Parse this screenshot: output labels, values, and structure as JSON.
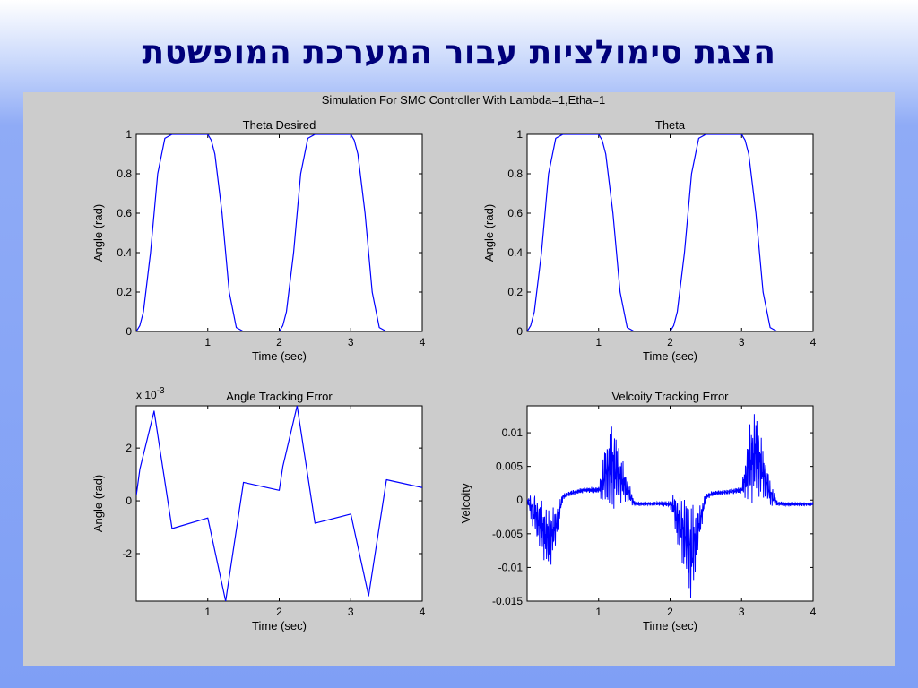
{
  "slide": {
    "title": "הצגת סימולציות עבור המערכת המופשטת"
  },
  "figure": {
    "suptitle": "Simulation For SMC Controller With Lambda=1,Etha=1"
  },
  "colors": {
    "line": "#0000ff",
    "background": "#cccccc",
    "axes_bg": "#ffffff",
    "title_text": "#00007a"
  },
  "chart_data": [
    {
      "type": "line",
      "title": "Theta Desired",
      "xlabel": "Time (sec)",
      "ylabel": "Angle (rad)",
      "xlim": [
        0,
        4
      ],
      "ylim": [
        0,
        1
      ],
      "xticks": [
        1,
        2,
        3,
        4
      ],
      "xtick_labels": [
        "1",
        "2",
        "3",
        "4"
      ],
      "yticks": [
        0,
        0.2,
        0.4,
        0.6,
        0.8,
        1
      ],
      "ytick_labels": [
        "0",
        "0.2",
        "0.4",
        "0.6",
        "0.8",
        "1"
      ],
      "series": [
        {
          "x": [
            0,
            0.05,
            0.1,
            0.2,
            0.3,
            0.4,
            0.5,
            1.0,
            1.05,
            1.1,
            1.2,
            1.3,
            1.4,
            1.5,
            2.0,
            2.05,
            2.1,
            2.2,
            2.3,
            2.4,
            2.5,
            3.0,
            3.05,
            3.1,
            3.2,
            3.3,
            3.4,
            3.5,
            4.0
          ],
          "y": [
            0,
            0.03,
            0.1,
            0.4,
            0.8,
            0.98,
            1,
            1,
            0.97,
            0.9,
            0.6,
            0.2,
            0.02,
            0,
            0,
            0.03,
            0.1,
            0.4,
            0.8,
            0.98,
            1,
            1,
            0.97,
            0.9,
            0.6,
            0.2,
            0.02,
            0,
            0
          ]
        }
      ]
    },
    {
      "type": "line",
      "title": "Theta",
      "xlabel": "Time (sec)",
      "ylabel": "Angle (rad)",
      "xlim": [
        0,
        4
      ],
      "ylim": [
        0,
        1
      ],
      "xticks": [
        1,
        2,
        3,
        4
      ],
      "xtick_labels": [
        "1",
        "2",
        "3",
        "4"
      ],
      "yticks": [
        0,
        0.2,
        0.4,
        0.6,
        0.8,
        1
      ],
      "ytick_labels": [
        "0",
        "0.2",
        "0.4",
        "0.6",
        "0.8",
        "1"
      ],
      "series": [
        {
          "x": [
            0,
            0.05,
            0.1,
            0.2,
            0.3,
            0.4,
            0.5,
            1.0,
            1.05,
            1.1,
            1.2,
            1.3,
            1.4,
            1.5,
            2.0,
            2.05,
            2.1,
            2.2,
            2.3,
            2.4,
            2.5,
            3.0,
            3.05,
            3.1,
            3.2,
            3.3,
            3.4,
            3.5,
            4.0
          ],
          "y": [
            0,
            0.03,
            0.1,
            0.4,
            0.8,
            0.98,
            1,
            1,
            0.97,
            0.9,
            0.6,
            0.2,
            0.02,
            0,
            0,
            0.03,
            0.1,
            0.4,
            0.8,
            0.98,
            1,
            1,
            0.97,
            0.9,
            0.6,
            0.2,
            0.02,
            0,
            0
          ]
        }
      ]
    },
    {
      "type": "line",
      "title": "Angle Tracking Error",
      "xlabel": "Time (sec)",
      "ylabel": "Angle (rad)",
      "exponent_label": "x 10",
      "exponent_power": "-3",
      "xlim": [
        0,
        4
      ],
      "ylim": [
        -3.8,
        3.6
      ],
      "xticks": [
        1,
        2,
        3,
        4
      ],
      "xtick_labels": [
        "1",
        "2",
        "3",
        "4"
      ],
      "yticks": [
        -2,
        0,
        2
      ],
      "ytick_labels": [
        "-2",
        "0",
        "2"
      ],
      "series": [
        {
          "x": [
            0,
            0.05,
            0.25,
            0.5,
            1.0,
            1.25,
            1.5,
            2.0,
            2.05,
            2.25,
            2.5,
            3.0,
            3.25,
            3.5,
            4.0
          ],
          "y": [
            0.2,
            1.2,
            3.4,
            -1.05,
            -0.65,
            -3.8,
            0.7,
            0.4,
            1.3,
            3.6,
            -0.85,
            -0.5,
            -3.6,
            0.8,
            0.5
          ]
        }
      ]
    },
    {
      "type": "line",
      "title": "Velcoity Tracking Error",
      "xlabel": "Time (sec)",
      "ylabel": "Velcoity",
      "xlim": [
        0,
        4
      ],
      "ylim": [
        -0.015,
        0.014
      ],
      "xticks": [
        1,
        2,
        3,
        4
      ],
      "xtick_labels": [
        "1",
        "2",
        "3",
        "4"
      ],
      "yticks": [
        -0.015,
        -0.01,
        -0.005,
        0,
        0.005,
        0.01
      ],
      "ytick_labels": [
        "-0.015",
        "-0.01",
        "-0.005",
        "0",
        "0.005",
        "0.01"
      ],
      "series": [
        {
          "x": [
            0,
            0.05,
            0.1,
            0.2,
            0.3,
            0.4,
            0.5,
            0.6,
            0.8,
            1.0,
            1.05,
            1.1,
            1.2,
            1.3,
            1.4,
            1.5,
            1.6,
            1.8,
            2.0,
            2.05,
            2.1,
            2.2,
            2.3,
            2.4,
            2.5,
            2.6,
            2.8,
            3.0,
            3.05,
            3.1,
            3.2,
            3.3,
            3.4,
            3.5,
            3.6,
            3.8,
            4.0
          ],
          "y": [
            0,
            -0.001,
            -0.002,
            -0.004,
            -0.006,
            -0.004,
            0.0005,
            0.001,
            0.0015,
            0.0015,
            0.0025,
            0.004,
            0.005,
            0.0035,
            0.0015,
            -0.0005,
            -0.0006,
            -0.0005,
            -0.0006,
            -0.001,
            -0.003,
            -0.005,
            -0.008,
            -0.004,
            0.0005,
            0.001,
            0.0012,
            0.0015,
            0.003,
            0.005,
            0.007,
            0.004,
            0.001,
            -0.0005,
            -0.0006,
            -0.0006,
            -0.0006
          ],
          "envelope": [
            0,
            0.002,
            0.003,
            0.004,
            0.005,
            0.003,
            0.0005,
            0.0004,
            0.0004,
            0.0005,
            0.003,
            0.005,
            0.007,
            0.004,
            0.002,
            0.0004,
            0.0003,
            0.0003,
            0.0005,
            0.002,
            0.004,
            0.006,
            0.008,
            0.003,
            0.0005,
            0.0004,
            0.0004,
            0.0005,
            0.003,
            0.006,
            0.007,
            0.004,
            0.002,
            0.0004,
            0.0003,
            0.0003,
            0.0003
          ]
        }
      ]
    }
  ]
}
